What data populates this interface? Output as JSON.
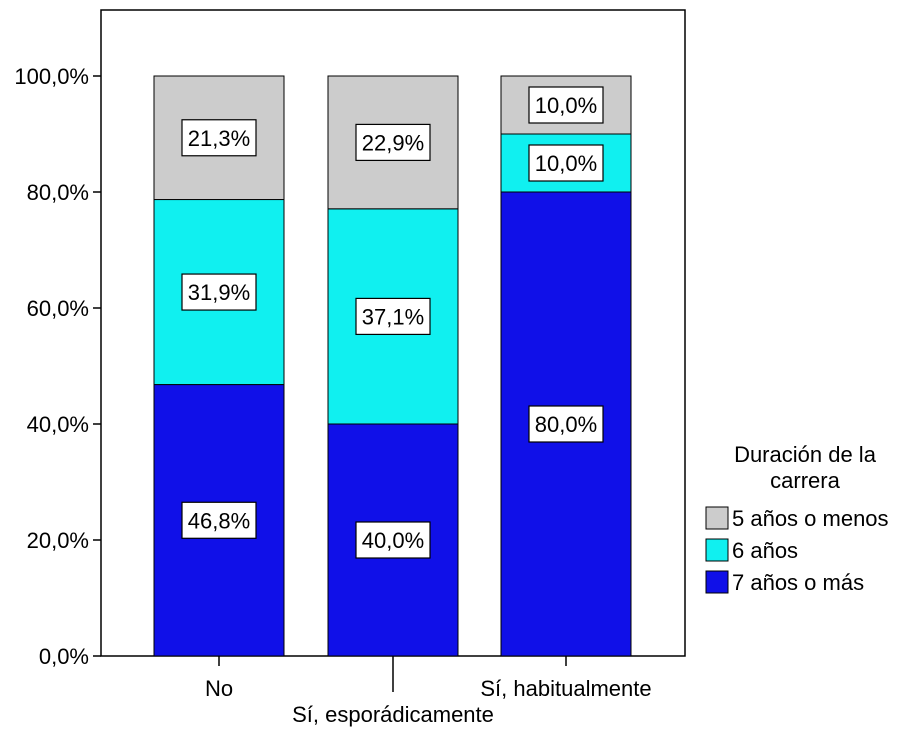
{
  "chart_data": {
    "type": "bar",
    "stacked": true,
    "normalized": true,
    "categories": [
      "No",
      "Sí, esporádicamente",
      "Sí, habitualmente"
    ],
    "series": [
      {
        "name": "7 años o más",
        "values": [
          46.8,
          40.0,
          80.0
        ],
        "labels": [
          "46,8%",
          "40,0%",
          "80,0%"
        ]
      },
      {
        "name": "6 años",
        "values": [
          31.9,
          37.1,
          10.0
        ],
        "labels": [
          "31,9%",
          "37,1%",
          "10,0%"
        ]
      },
      {
        "name": "5 años o menos",
        "values": [
          21.3,
          22.9,
          10.0
        ],
        "labels": [
          "21,3%",
          "22,9%",
          "10,0%"
        ]
      }
    ],
    "colors": {
      "7 años o más": "#1010e8",
      "6 años": "#10f0f0",
      "5 años o menos": "#cccccc"
    },
    "yticks": [
      "0,0%",
      "20,0%",
      "40,0%",
      "60,0%",
      "80,0%",
      "100,0%"
    ],
    "ylim": [
      0,
      100
    ],
    "title": "",
    "xlabel": "",
    "ylabel": "",
    "legend": {
      "title_line1": "Duración de la",
      "title_line2": "carrera",
      "position": "right",
      "order": [
        "5 años o menos",
        "6 años",
        "7 años o más"
      ]
    },
    "grid": false
  }
}
